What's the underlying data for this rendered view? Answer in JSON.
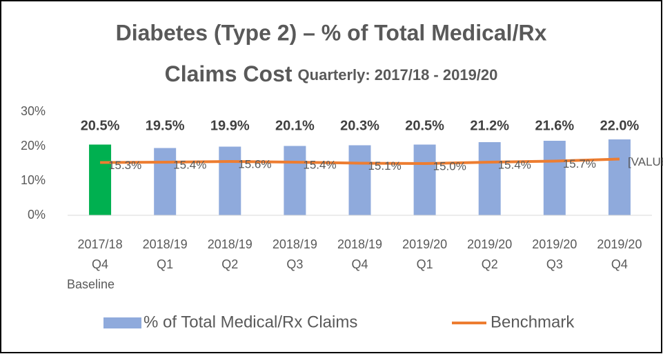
{
  "chart_data": {
    "type": "bar",
    "title_lines": [
      "Diabetes (Type 2) – % of Total Medical/Rx",
      "Claims Cost"
    ],
    "subtitle": "Quarterly:  2017/18 - 2019/20",
    "categories": [
      [
        "2017/18",
        "Q4",
        "Baseline"
      ],
      [
        "2018/19",
        "Q1"
      ],
      [
        "2018/19",
        "Q2"
      ],
      [
        "2018/19",
        "Q3"
      ],
      [
        "2018/19",
        "Q4"
      ],
      [
        "2019/20",
        "Q1"
      ],
      [
        "2019/20",
        "Q2"
      ],
      [
        "2019/20",
        "Q3"
      ],
      [
        "2019/20",
        "Q4"
      ]
    ],
    "series": [
      {
        "name": "% of Total Medical/Rx Claims",
        "type": "bar",
        "color": "#8faadc",
        "colors": [
          "#00b050",
          "#8faadc",
          "#8faadc",
          "#8faadc",
          "#8faadc",
          "#8faadc",
          "#8faadc",
          "#8faadc",
          "#8faadc"
        ],
        "values": [
          20.5,
          19.5,
          19.9,
          20.1,
          20.3,
          20.5,
          21.2,
          21.6,
          22.0
        ],
        "value_labels": [
          "20.5%",
          "19.5%",
          "19.9%",
          "20.1%",
          "20.3%",
          "20.5%",
          "21.2%",
          "21.6%",
          "22.0%"
        ]
      },
      {
        "name": "Benchmark",
        "type": "line",
        "color": "#ed7d31",
        "values": [
          15.3,
          15.4,
          15.6,
          15.4,
          15.1,
          15.0,
          15.4,
          15.7,
          16.3
        ],
        "value_labels": [
          "15.3%",
          "15.4%",
          "15.6%",
          "15.4%",
          "15.1%",
          "15.0%",
          "15.4%",
          "15.7%",
          "[VALUE]"
        ]
      }
    ],
    "ylim": [
      0,
      30
    ],
    "yticks": [
      {
        "value": 0,
        "label": "0%"
      },
      {
        "value": 10,
        "label": "10%"
      },
      {
        "value": 20,
        "label": "20%"
      },
      {
        "value": 30,
        "label": "30%"
      }
    ],
    "grid": false,
    "legend": "bottom"
  }
}
